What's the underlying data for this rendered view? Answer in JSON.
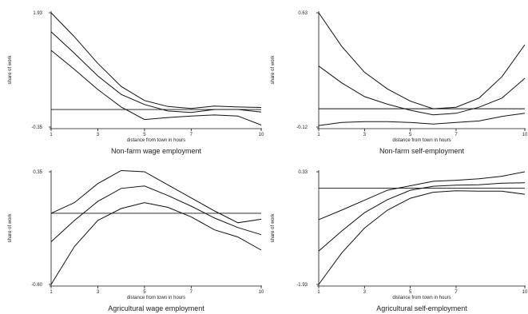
{
  "chart_data": [
    {
      "type": "line",
      "title": "Non-farm wage employment",
      "xlabel": "distance from town in hours",
      "ylabel": "share of work",
      "xticks": [
        1,
        3,
        5,
        7,
        10
      ],
      "xlim": [
        1,
        10
      ],
      "ylim": [
        -0.35,
        1.93
      ],
      "yticklabels": [
        "1.93",
        "-0.35"
      ],
      "reference_y": 0.0,
      "x": [
        1,
        2,
        3,
        4,
        5,
        6,
        7,
        8,
        9,
        10
      ],
      "series": [
        {
          "values": [
            1.93,
            1.45,
            0.92,
            0.46,
            0.18,
            0.06,
            0.02,
            0.07,
            0.05,
            0.04
          ]
        },
        {
          "values": [
            1.55,
            1.12,
            0.67,
            0.3,
            0.1,
            -0.03,
            -0.06,
            0.0,
            0.0,
            -0.05
          ]
        },
        {
          "values": [
            1.18,
            0.8,
            0.4,
            0.05,
            -0.2,
            -0.16,
            -0.13,
            -0.11,
            -0.13,
            -0.31
          ]
        }
      ]
    },
    {
      "type": "line",
      "title": "Non-farm self-employment",
      "xlabel": "distance from town in hours",
      "ylabel": "share of work",
      "xticks": [
        1,
        3,
        5,
        7,
        10
      ],
      "xlim": [
        1,
        10
      ],
      "ylim": [
        -0.12,
        0.63
      ],
      "yticklabels": [
        "0.63",
        "-0.12"
      ],
      "reference_y": 0.0,
      "x": [
        1,
        2,
        3,
        4,
        5,
        6,
        7,
        8,
        9,
        10
      ],
      "series": [
        {
          "values": [
            0.63,
            0.41,
            0.24,
            0.13,
            0.05,
            0.0,
            0.01,
            0.07,
            0.21,
            0.42
          ]
        },
        {
          "values": [
            0.28,
            0.17,
            0.08,
            0.03,
            -0.01,
            -0.04,
            -0.03,
            0.01,
            0.07,
            0.2
          ]
        },
        {
          "values": [
            -0.11,
            -0.09,
            -0.085,
            -0.085,
            -0.09,
            -0.1,
            -0.09,
            -0.08,
            -0.05,
            -0.03
          ]
        }
      ]
    },
    {
      "type": "line",
      "title": "Agricultural wage employment",
      "xlabel": "distance from town in hours",
      "ylabel": "share of work",
      "xticks": [
        1,
        3,
        5,
        7,
        10
      ],
      "xlim": [
        1,
        10
      ],
      "ylim": [
        -0.6,
        0.35
      ],
      "yticklabels": [
        "0.35",
        "-0.60"
      ],
      "reference_y": 0.0,
      "x": [
        1,
        2,
        3,
        4,
        5,
        6,
        7,
        8,
        9,
        10
      ],
      "series": [
        {
          "values": [
            0.0,
            0.09,
            0.25,
            0.36,
            0.35,
            0.24,
            0.13,
            0.02,
            -0.08,
            -0.05
          ]
        },
        {
          "values": [
            -0.24,
            -0.06,
            0.1,
            0.21,
            0.23,
            0.15,
            0.06,
            -0.04,
            -0.12,
            -0.18
          ]
        },
        {
          "values": [
            -0.6,
            -0.28,
            -0.06,
            0.04,
            0.09,
            0.05,
            -0.03,
            -0.14,
            -0.2,
            -0.31
          ]
        }
      ]
    },
    {
      "type": "line",
      "title": "Agricultural self-employment",
      "xlabel": "distance from town in hours",
      "ylabel": "share of work",
      "xticks": [
        1,
        3,
        5,
        7,
        10
      ],
      "xlim": [
        1,
        10
      ],
      "ylim": [
        -1.93,
        0.33
      ],
      "yticklabels": [
        "0.33",
        "-1.93"
      ],
      "reference_y": 0.0,
      "x": [
        1,
        2,
        3,
        4,
        5,
        6,
        7,
        8,
        9,
        10
      ],
      "series": [
        {
          "values": [
            -0.63,
            -0.44,
            -0.24,
            -0.04,
            0.05,
            0.14,
            0.16,
            0.19,
            0.24,
            0.33
          ]
        },
        {
          "values": [
            -1.26,
            -0.86,
            -0.49,
            -0.23,
            -0.04,
            0.04,
            0.06,
            0.07,
            0.1,
            0.11
          ]
        },
        {
          "values": [
            -1.93,
            -1.3,
            -0.8,
            -0.44,
            -0.2,
            -0.08,
            -0.05,
            -0.06,
            -0.06,
            -0.12
          ]
        }
      ]
    }
  ]
}
